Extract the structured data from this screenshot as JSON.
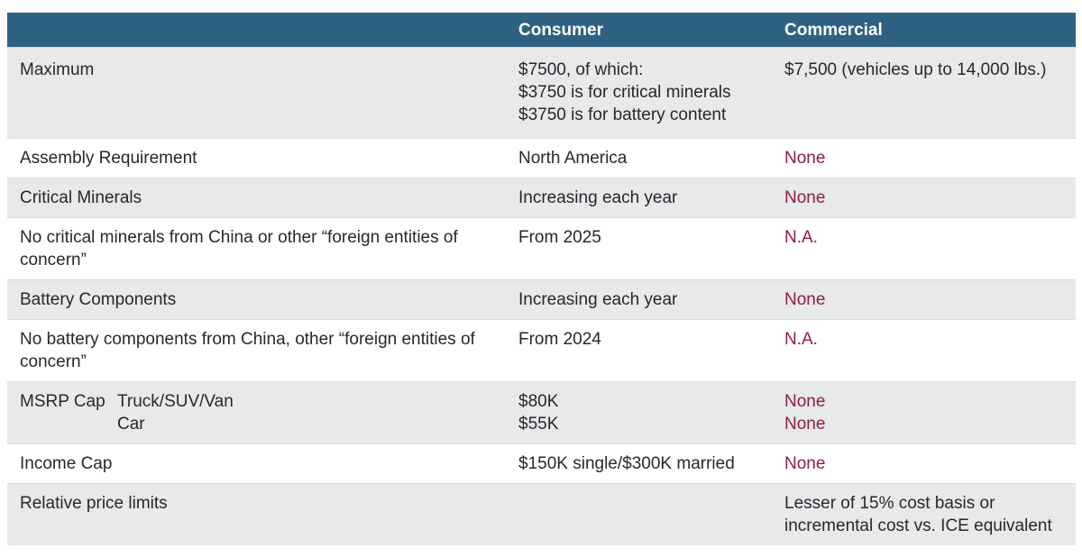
{
  "chart_data": {
    "type": "table",
    "columns": [
      "",
      "Consumer",
      "Commercial"
    ],
    "rows": [
      [
        "Maximum",
        "$7500, of which: $3750 is for critical minerals $3750 is for battery content",
        "$7,500 (vehicles up to 14,000 lbs.)"
      ],
      [
        "Assembly Requirement",
        "North America",
        "None"
      ],
      [
        "Critical Minerals",
        "Increasing each year",
        "None"
      ],
      [
        "No critical minerals from China or other “foreign entities of concern”",
        "From 2025",
        "N.A."
      ],
      [
        "Battery Components",
        "Increasing each year",
        "None"
      ],
      [
        "No battery components from China, other “foreign entities of concern”",
        "From 2024",
        "N.A."
      ],
      [
        "MSRP Cap — Truck/SUV/Van / Car",
        "$80K / $55K",
        "None / None"
      ],
      [
        "Income Cap",
        "$150K single/$300K married",
        "None"
      ],
      [
        "Relative price limits",
        "",
        "Lesser of 15% cost basis or incremental cost vs. ICE equivalent"
      ]
    ],
    "layout": {
      "header_bg": "#2f6282",
      "alt_row_bg": "#e7e9eb",
      "accent_red": "#8e1f3e",
      "grid": "horizontal-only"
    }
  },
  "table": {
    "header": {
      "consumer": "Consumer",
      "commercial": "Commercial"
    },
    "rows": [
      {
        "label": "Maximum",
        "consumer": [
          "$7500, of which:",
          "$3750 is for critical minerals",
          "$3750 is for battery content"
        ],
        "commercial": "$7,500 (vehicles up to 14,000 lbs.)"
      },
      {
        "label": "Assembly Requirement",
        "consumer": "North America",
        "commercial": "None"
      },
      {
        "label": "Critical Minerals",
        "consumer": "Increasing each year",
        "commercial": "None"
      },
      {
        "label": "No critical minerals from China or other “foreign entities of concern”",
        "consumer": "From 2025",
        "commercial": "N.A."
      },
      {
        "label": "Battery Components",
        "consumer": "Increasing each year",
        "commercial": "None"
      },
      {
        "label": "No battery components from China, other “foreign entities of concern”",
        "consumer": "From 2024",
        "commercial": "N.A."
      },
      {
        "label": "MSRP Cap",
        "sublabels": [
          "Truck/SUV/Van",
          "Car"
        ],
        "consumer": [
          "$80K",
          "$55K"
        ],
        "commercial": [
          "None",
          "None"
        ]
      },
      {
        "label": "Income Cap",
        "consumer": "$150K single/$300K married",
        "commercial": "None"
      },
      {
        "label": "Relative price limits",
        "consumer": "",
        "commercial": [
          "Lesser of 15% cost basis or",
          "incremental cost vs. ICE equivalent"
        ]
      }
    ]
  }
}
